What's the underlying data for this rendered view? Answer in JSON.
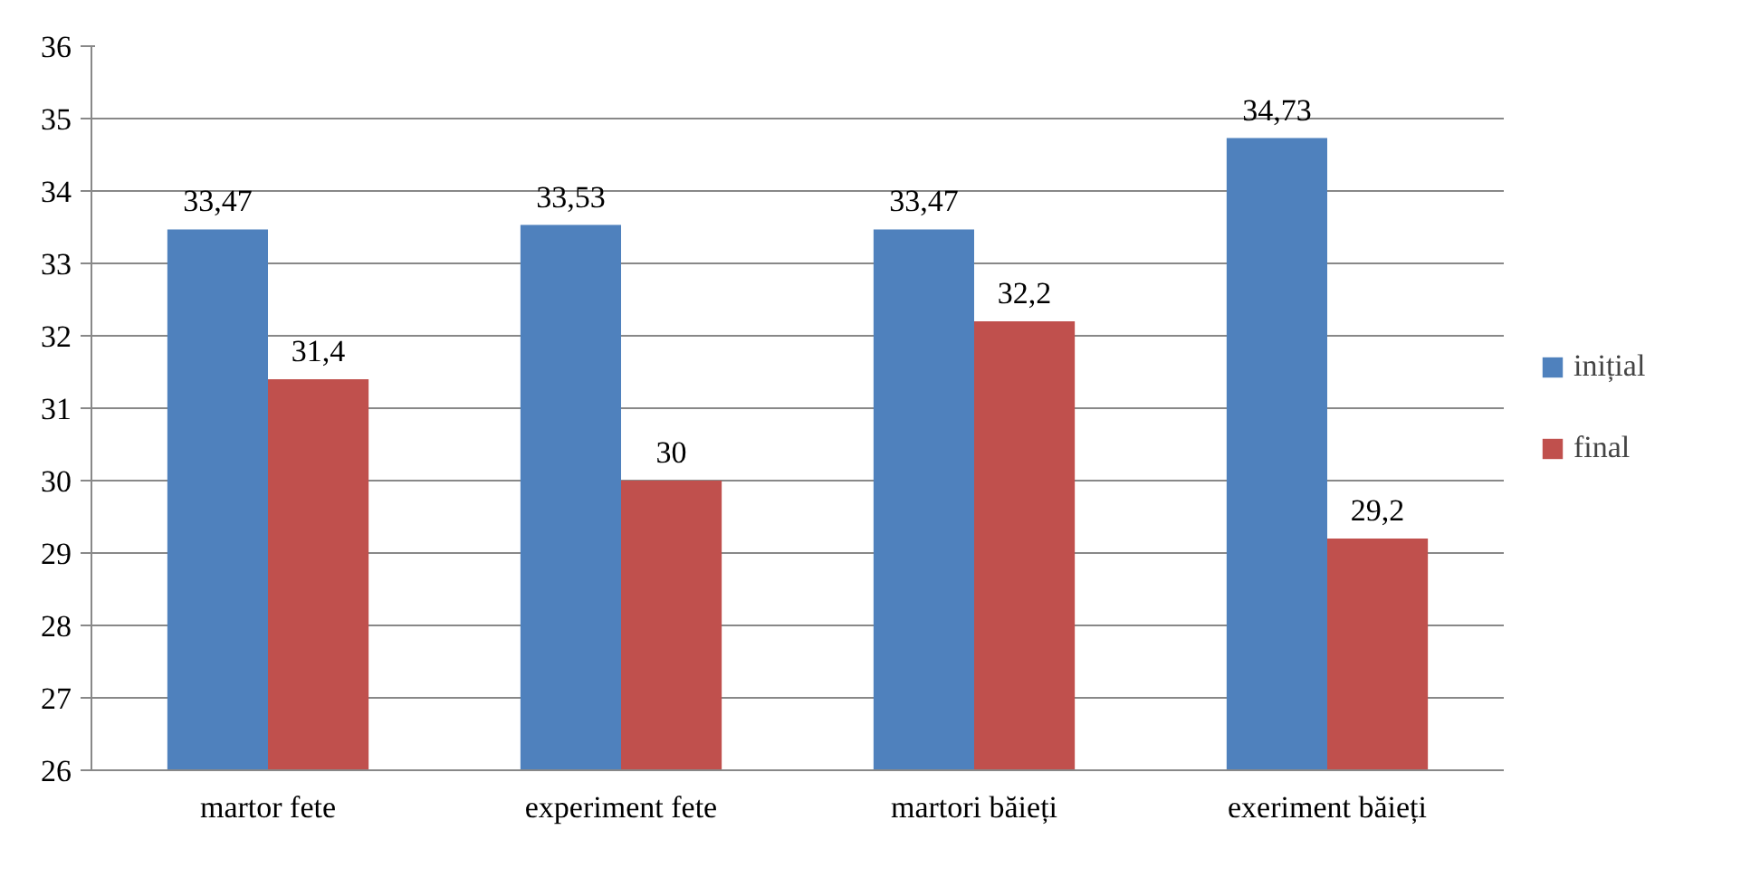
{
  "chart_data": {
    "type": "bar",
    "categories": [
      "martor fete",
      "experiment fete",
      "martori băieți",
      "exeriment băieți"
    ],
    "series": [
      {
        "name": "inițial",
        "color": "#4f81bd",
        "values": [
          33.47,
          33.53,
          33.47,
          34.73
        ],
        "value_labels": [
          "33,47",
          "33,53",
          "33,47",
          "34,73"
        ]
      },
      {
        "name": "final",
        "color": "#c0504d",
        "values": [
          31.4,
          30,
          32.2,
          29.2
        ],
        "value_labels": [
          "31,4",
          "30",
          "32,2",
          "29,2"
        ]
      }
    ],
    "ylim": [
      26,
      36
    ],
    "yticks": [
      26,
      27,
      28,
      29,
      30,
      31,
      32,
      33,
      34,
      35,
      36
    ],
    "grid": "y",
    "legend": "right"
  }
}
